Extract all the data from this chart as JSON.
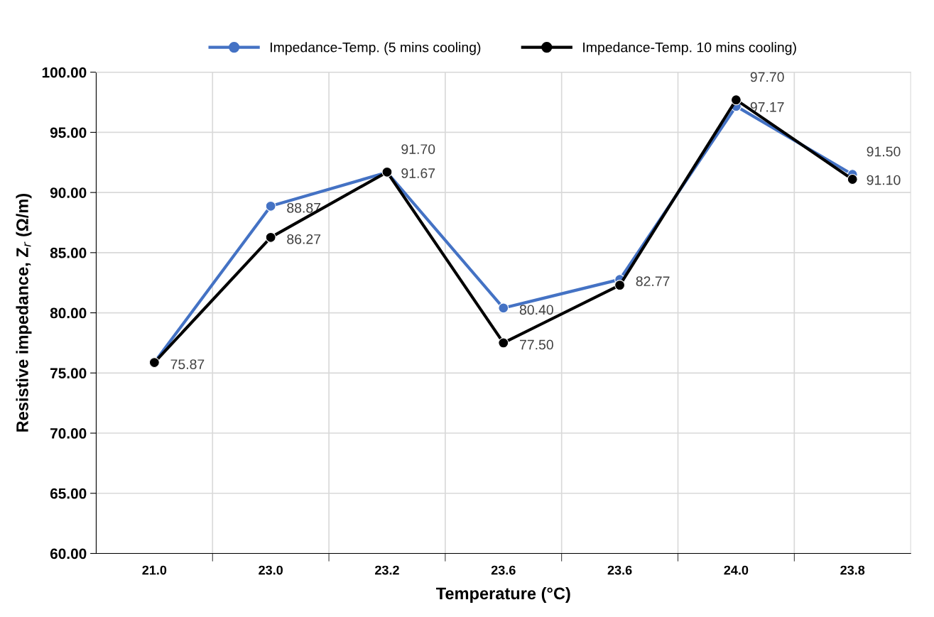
{
  "chart_data": {
    "type": "line",
    "xlabel": "Temperature (°C)",
    "ylabel": "Resistive impedance, Z$_{r}$ (Ω/m)",
    "categories": [
      "21.0",
      "23.0",
      "23.2",
      "23.6",
      "23.6",
      "24.0",
      "23.8"
    ],
    "series": [
      {
        "name": "Impedance-Temp. (5 mins cooling)",
        "color": "#4472c4",
        "values": [
          75.87,
          88.87,
          91.67,
          80.4,
          82.77,
          97.17,
          91.5
        ],
        "value_labels": [
          null,
          "88.87",
          "91.67",
          "80.40",
          "82.77",
          "97.17",
          "91.50"
        ]
      },
      {
        "name": "Impedance-Temp. 10 mins cooling)",
        "color": "#000000",
        "values": [
          75.87,
          86.27,
          91.7,
          77.5,
          82.3,
          97.7,
          91.1
        ],
        "value_labels": [
          "75.87",
          "86.27",
          "91.70",
          "77.50",
          null,
          "97.70",
          "91.10"
        ]
      }
    ],
    "ylim": [
      60,
      100
    ],
    "yticks": [
      {
        "value": 60,
        "label": "60.00"
      },
      {
        "value": 65,
        "label": "65.00"
      },
      {
        "value": 70,
        "label": "70.00"
      },
      {
        "value": 75,
        "label": "75.00"
      },
      {
        "value": 80,
        "label": "80.00"
      },
      {
        "value": 85,
        "label": "85.00"
      },
      {
        "value": 90,
        "label": "90.00"
      },
      {
        "value": 95,
        "label": "95.00"
      },
      {
        "value": 100,
        "label": "100.00"
      }
    ],
    "grid": true,
    "legend": "top",
    "marker": "circle",
    "line_style": "solid"
  }
}
